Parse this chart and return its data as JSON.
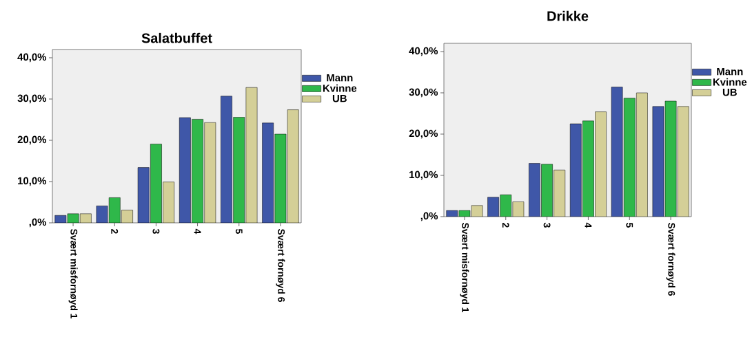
{
  "chart_data": [
    {
      "type": "bar",
      "title": "Salatbuffet",
      "categories": [
        "Svært misfornøyd 1",
        "2",
        "3",
        "4",
        "5",
        "Svært fornøyd 6"
      ],
      "series": [
        {
          "name": "Mann",
          "color": "#3f57a8",
          "values": [
            1.8,
            4.1,
            13.4,
            25.5,
            30.7,
            24.2
          ]
        },
        {
          "name": "Kvinne",
          "color": "#2fb84a",
          "values": [
            2.2,
            6.1,
            19.1,
            25.1,
            25.6,
            21.5
          ]
        },
        {
          "name": "UB",
          "color": "#d4cf97",
          "values": [
            2.2,
            3.1,
            9.9,
            24.3,
            32.8,
            27.4
          ]
        }
      ],
      "ylim": [
        0,
        42
      ],
      "yticks": [
        {
          "value": 0,
          "label": ",0%"
        },
        {
          "value": 10,
          "label": "10,0%"
        },
        {
          "value": 20,
          "label": "20,0%"
        },
        {
          "value": 30,
          "label": "30,0%"
        },
        {
          "value": 40,
          "label": "40,0%"
        }
      ],
      "legend": "right"
    },
    {
      "type": "bar",
      "title": "Drikke",
      "categories": [
        "Svært misfornøyd 1",
        "2",
        "3",
        "4",
        "5",
        "Svært fornøyd 6"
      ],
      "series": [
        {
          "name": "Mann",
          "color": "#3f57a8",
          "values": [
            1.5,
            4.7,
            12.9,
            22.5,
            31.4,
            26.7
          ]
        },
        {
          "name": "Kvinne",
          "color": "#2fb84a",
          "values": [
            1.5,
            5.3,
            12.7,
            23.2,
            28.7,
            28.0
          ]
        },
        {
          "name": "UB",
          "color": "#d4cf97",
          "values": [
            2.7,
            3.6,
            11.3,
            25.4,
            30.0,
            26.7
          ]
        }
      ],
      "ylim": [
        0,
        42
      ],
      "yticks": [
        {
          "value": 0,
          "label": ",0%"
        },
        {
          "value": 10,
          "label": "10,0%"
        },
        {
          "value": 20,
          "label": "20,0%"
        },
        {
          "value": 30,
          "label": "30,0%"
        },
        {
          "value": 40,
          "label": "40,0%"
        }
      ],
      "legend": "right"
    }
  ]
}
